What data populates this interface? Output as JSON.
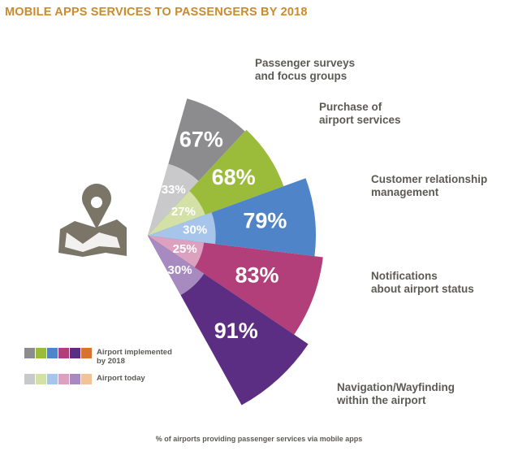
{
  "title": "MOBILE APPS SERVICES TO PASSENGERS BY 2018",
  "footnote": "% of airports providing passenger services via mobile apps",
  "legend": {
    "implemented_label": "Airport implemented\nby 2018",
    "today_label": "Airport today",
    "implemented_colors": [
      "#8c8c8f",
      "#9bbb3a",
      "#4f84c8",
      "#b23f79",
      "#5b2e83",
      "#d7732e"
    ],
    "today_colors": [
      "#c9c9cb",
      "#d3e1a6",
      "#a7c5ea",
      "#dba1be",
      "#a68ac0",
      "#efc499"
    ]
  },
  "chart_data": {
    "type": "radial-bar",
    "unit": "%",
    "categories": [
      "Passenger surveys\nand focus groups",
      "Purchase of\nairport services",
      "Customer relationship\nmanagement",
      "Notifications\nabout airport status",
      "Navigation/Wayfinding\nwithin the airport"
    ],
    "series": [
      {
        "name": "Airport implemented by 2018",
        "values": [
          67,
          68,
          79,
          83,
          91
        ]
      },
      {
        "name": "Airport today",
        "values": [
          33,
          27,
          30,
          25,
          30
        ]
      }
    ],
    "value_labels": {
      "implemented": [
        "67%",
        "68%",
        "79%",
        "83%",
        "91%"
      ],
      "today": [
        "33%",
        "27%",
        "30%",
        "25%",
        "30%"
      ]
    },
    "colors": {
      "implemented": [
        "#8c8c8f",
        "#9bbb3a",
        "#4f84c8",
        "#b23f79",
        "#5b2e83"
      ],
      "today": [
        "#c9c9cb",
        "#d3e1a6",
        "#a7c5ea",
        "#dba1be",
        "#a68ac0"
      ]
    },
    "icon": "map-pin-icon"
  }
}
